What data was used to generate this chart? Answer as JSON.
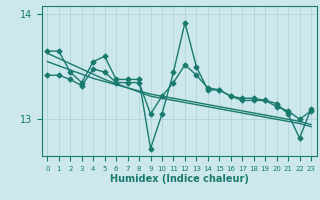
{
  "xlabel": "Humidex (Indice chaleur)",
  "x": [
    0,
    1,
    2,
    3,
    4,
    5,
    6,
    7,
    8,
    9,
    10,
    11,
    12,
    13,
    14,
    15,
    16,
    17,
    18,
    19,
    20,
    21,
    22,
    23
  ],
  "y_main": [
    13.65,
    13.65,
    13.45,
    13.35,
    13.55,
    13.6,
    13.38,
    13.38,
    13.38,
    12.72,
    13.05,
    13.45,
    13.92,
    13.5,
    13.28,
    13.28,
    13.22,
    13.2,
    13.2,
    13.18,
    13.15,
    13.05,
    12.82,
    13.1
  ],
  "y_line2": [
    13.42,
    13.42,
    13.38,
    13.32,
    13.48,
    13.45,
    13.35,
    13.35,
    13.35,
    13.05,
    13.22,
    13.35,
    13.52,
    13.42,
    13.3,
    13.28,
    13.22,
    13.18,
    13.18,
    13.18,
    13.12,
    13.08,
    13.0,
    13.08
  ],
  "y_trend1": [
    13.63,
    13.58,
    13.53,
    13.48,
    13.43,
    13.38,
    13.34,
    13.3,
    13.26,
    13.22,
    13.2,
    13.18,
    13.16,
    13.14,
    13.12,
    13.1,
    13.08,
    13.06,
    13.04,
    13.02,
    13.0,
    12.98,
    12.96,
    12.93
  ],
  "y_trend2": [
    13.55,
    13.51,
    13.47,
    13.43,
    13.39,
    13.36,
    13.33,
    13.3,
    13.27,
    13.24,
    13.22,
    13.2,
    13.18,
    13.16,
    13.14,
    13.12,
    13.1,
    13.08,
    13.06,
    13.04,
    13.02,
    13.0,
    12.98,
    12.95
  ],
  "ylim": [
    12.65,
    14.08
  ],
  "yticks": [
    13,
    14
  ],
  "color": "#1a7a6e",
  "bg_color": "#cce8ec",
  "grid_color": "#afd4d8",
  "line_width": 1.0,
  "marker_size": 2.5
}
